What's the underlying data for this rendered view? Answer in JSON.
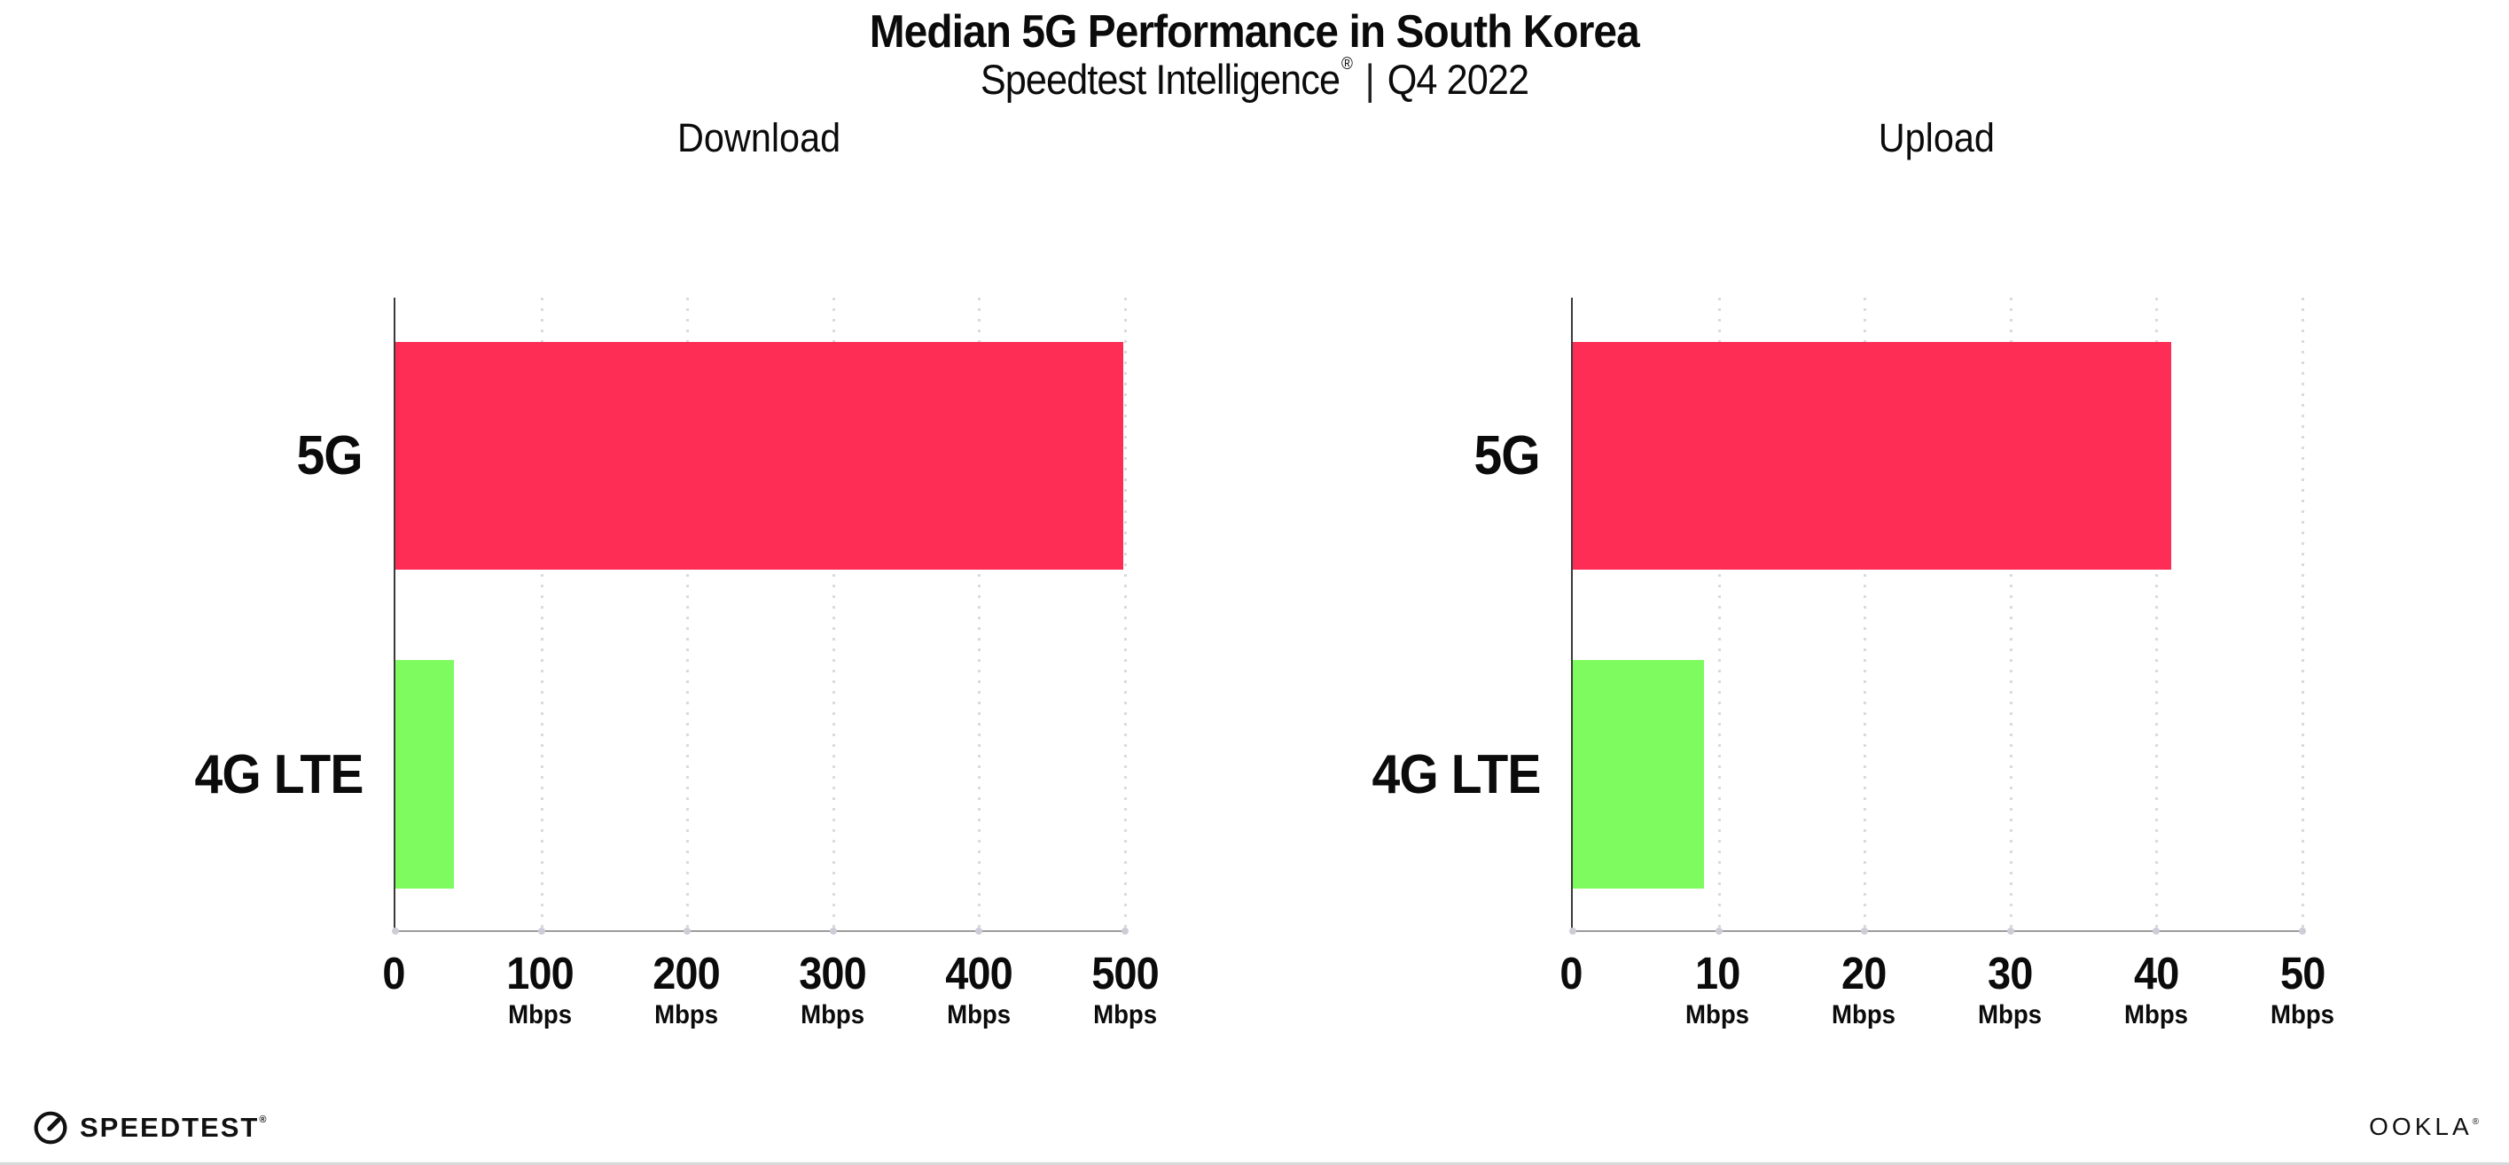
{
  "page": {
    "title": "Median 5G Performance in South Korea",
    "subtitle": {
      "brand": "Speedtest Intelligence",
      "reg": "®",
      "sep": "|",
      "period": "Q4 2022"
    }
  },
  "colors": {
    "bar_5g_pink": "#FE2D55",
    "bar_4g_green": "#7EFB5F",
    "gridline": "#D9D9E3",
    "y_axis": "#3A3A3A",
    "x_axis": "#9B9B9B",
    "text": "#0B0B0B"
  },
  "chart_data": [
    {
      "type": "bar",
      "orientation": "horizontal",
      "title": "Download",
      "categories": [
        "5G",
        "4G LTE"
      ],
      "values": [
        499,
        40
      ],
      "unit": "Mbps",
      "xlim": [
        0,
        500
      ],
      "grid": "dotted vertical gridlines every 100 Mbps",
      "legend_position": "none",
      "bar_colors": [
        "#FE2D55",
        "#7EFB5F"
      ],
      "ticks": [
        {
          "label": "0",
          "unit": ""
        },
        {
          "label": "100",
          "unit": "Mbps"
        },
        {
          "label": "200",
          "unit": "Mbps"
        },
        {
          "label": "300",
          "unit": "Mbps"
        },
        {
          "label": "400",
          "unit": "Mbps"
        },
        {
          "label": "500",
          "unit": "Mbps"
        }
      ]
    },
    {
      "type": "bar",
      "orientation": "horizontal",
      "title": "Upload",
      "categories": [
        "5G",
        "4G LTE"
      ],
      "values": [
        41,
        9
      ],
      "unit": "Mbps",
      "xlim": [
        0,
        50
      ],
      "grid": "dotted vertical gridlines every 10 Mbps",
      "legend_position": "none",
      "bar_colors": [
        "#FE2D55",
        "#7EFB5F"
      ],
      "ticks": [
        {
          "label": "0",
          "unit": ""
        },
        {
          "label": "10",
          "unit": "Mbps"
        },
        {
          "label": "20",
          "unit": "Mbps"
        },
        {
          "label": "30",
          "unit": "Mbps"
        },
        {
          "label": "40",
          "unit": "Mbps"
        },
        {
          "label": "50",
          "unit": "Mbps"
        }
      ]
    }
  ],
  "footer": {
    "speedtest_label": "SPEEDTEST",
    "speedtest_mark": "®",
    "ookla_label": "OOKLA",
    "ookla_mark": "®"
  }
}
